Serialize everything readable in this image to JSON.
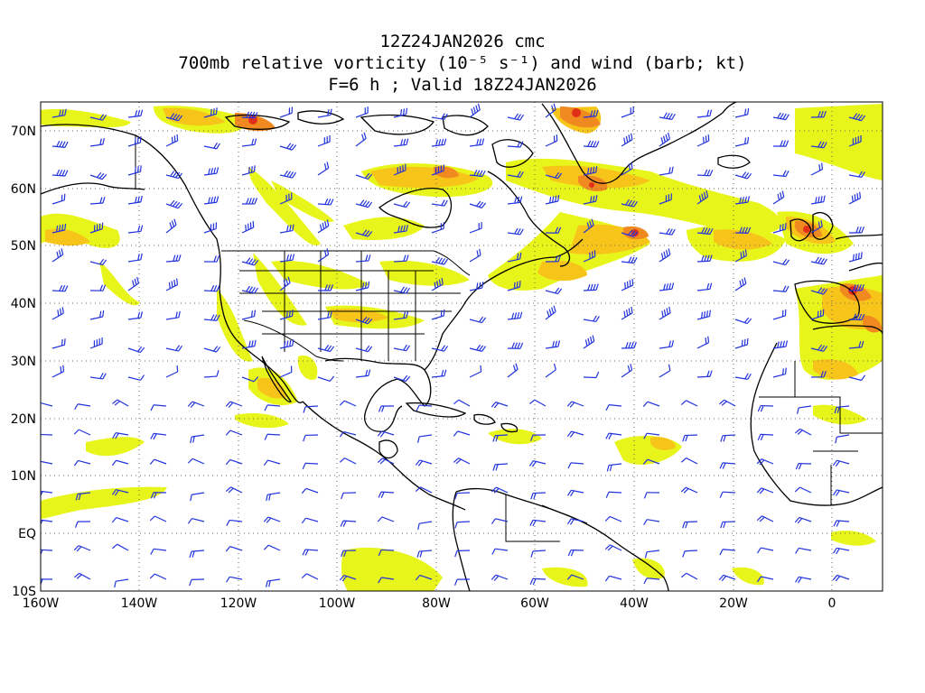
{
  "title": {
    "line1": "12Z24JAN2026 cmc",
    "line2": "700mb relative vorticity (10⁻⁵ s⁻¹) and wind (barb; kt)",
    "line3": "F=6 h ; Valid 18Z24JAN2026"
  },
  "axes": {
    "x_ticks": [
      "160W",
      "140W",
      "120W",
      "100W",
      "80W",
      "60W",
      "40W",
      "20W",
      "0"
    ],
    "y_ticks": [
      "70N",
      "60N",
      "50N",
      "40N",
      "30N",
      "20N",
      "10N",
      "EQ",
      "10S"
    ]
  },
  "colors": {
    "vort_low": "#e8f51a",
    "vort_mid": "#f7c41a",
    "vort_high": "#f08a20",
    "vort_max": "#e23018",
    "barb": "#2233dd",
    "coast": "#000000",
    "grid": "#666666"
  }
}
